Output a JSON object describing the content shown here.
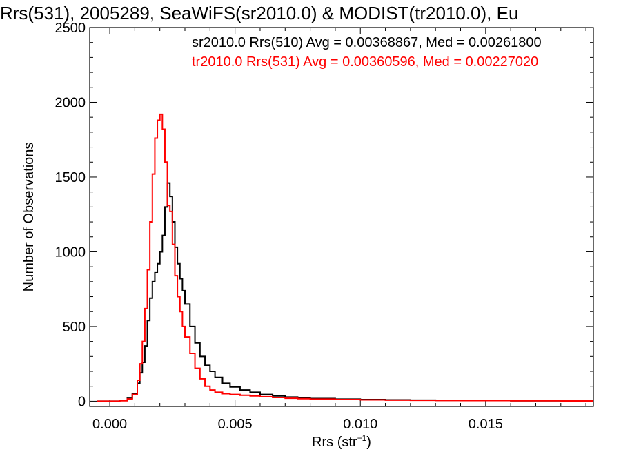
{
  "chart_data": {
    "type": "line",
    "title": "Rrs(531), 2005289, SeaWiFS(sr2010.0) & MODIST(tr2010.0), Eu",
    "xlabel": "Rrs (str",
    "xlabel_sup": "−1",
    "xlabel_end": ")",
    "ylabel": "Number of Observations",
    "xlim": [
      -0.0008,
      0.0193
    ],
    "ylim": [
      -35,
      2500
    ],
    "xticks": [
      0.0,
      0.005,
      0.01,
      0.015
    ],
    "xtick_labels": [
      "0.000",
      "0.005",
      "0.010",
      "0.015"
    ],
    "yticks": [
      0,
      500,
      1000,
      1500,
      2000,
      2500
    ],
    "ytick_labels": [
      "0",
      "500",
      "1000",
      "1500",
      "2000",
      "2500"
    ],
    "grid": false,
    "legend_position": "top-right",
    "annotations": [
      {
        "text": "sr2010.0 Rrs(510) Avg = 0.00368867, Med = 0.00261800",
        "color": "#000000"
      },
      {
        "text": "tr2010.0 Rrs(531) Avg = 0.00360596, Med = 0.00227020",
        "color": "#ff0000"
      }
    ],
    "series": [
      {
        "color": "#000000",
        "x": [
          -0.0005,
          0.0,
          0.0004,
          0.0007,
          0.0009,
          0.0011,
          0.0012,
          0.0013,
          0.0014,
          0.0015,
          0.0016,
          0.0017,
          0.0018,
          0.0019,
          0.002,
          0.0021,
          0.0022,
          0.0023,
          0.0024,
          0.0025,
          0.0026,
          0.0027,
          0.0028,
          0.0029,
          0.003,
          0.0032,
          0.0034,
          0.0036,
          0.0038,
          0.004,
          0.0042,
          0.0045,
          0.0048,
          0.0052,
          0.0056,
          0.006,
          0.0065,
          0.007,
          0.0075,
          0.008,
          0.009,
          0.01,
          0.011,
          0.012,
          0.013,
          0.014,
          0.015,
          0.016,
          0.017,
          0.018,
          0.019
        ],
        "values": [
          0,
          0,
          5,
          20,
          50,
          120,
          190,
          260,
          370,
          540,
          690,
          800,
          860,
          920,
          1000,
          1110,
          1300,
          1460,
          1370,
          1200,
          1030,
          920,
          820,
          740,
          650,
          500,
          390,
          300,
          240,
          200,
          160,
          120,
          95,
          75,
          60,
          45,
          35,
          28,
          22,
          18,
          14,
          11,
          9,
          7,
          6,
          5,
          4,
          3,
          3,
          2,
          2
        ]
      },
      {
        "color": "#ff0000",
        "x": [
          -0.0005,
          0.0,
          0.0004,
          0.0007,
          0.0009,
          0.0011,
          0.0012,
          0.0013,
          0.0014,
          0.0015,
          0.0016,
          0.0017,
          0.0018,
          0.0019,
          0.002,
          0.0021,
          0.0022,
          0.0023,
          0.0024,
          0.0025,
          0.0026,
          0.0027,
          0.0028,
          0.0029,
          0.003,
          0.0032,
          0.0034,
          0.0036,
          0.0038,
          0.004,
          0.0042,
          0.0045,
          0.0048,
          0.0052,
          0.0056,
          0.006,
          0.0065,
          0.007,
          0.0075,
          0.008,
          0.009,
          0.01,
          0.011,
          0.012,
          0.013,
          0.014,
          0.015,
          0.016,
          0.017,
          0.018,
          0.019
        ],
        "values": [
          0,
          0,
          3,
          15,
          45,
          140,
          250,
          400,
          620,
          880,
          1200,
          1520,
          1760,
          1880,
          1920,
          1820,
          1600,
          1310,
          1270,
          1050,
          840,
          700,
          600,
          500,
          430,
          320,
          220,
          150,
          100,
          75,
          60,
          50,
          45,
          40,
          35,
          30,
          25,
          20,
          17,
          14,
          11,
          9,
          7,
          6,
          5,
          4,
          4,
          3,
          3,
          2,
          2
        ]
      }
    ]
  }
}
